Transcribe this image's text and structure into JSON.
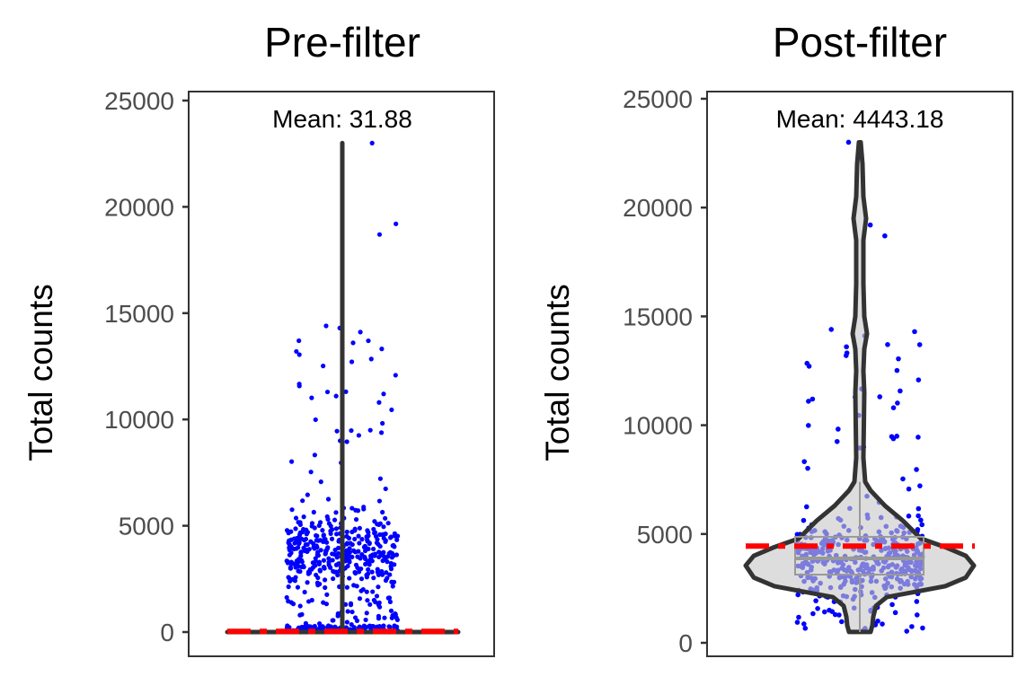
{
  "chart_data": [
    {
      "type": "violin",
      "title": "Pre-filter",
      "ylabel": "Total counts",
      "xlabel": "",
      "ylim": [
        -400,
        26200
      ],
      "yticks": [
        "0",
        "5000",
        "10000",
        "15000",
        "20000",
        "25000"
      ],
      "annotation": "Mean: 31.88",
      "mean": 31.88,
      "max": 23000,
      "mean_line_color": "#ff0000",
      "point_color": "#0000ff",
      "grid": false
    },
    {
      "type": "violin",
      "title": "Post-filter",
      "ylabel": "Total counts",
      "xlabel": "",
      "ylim": [
        -400,
        26200
      ],
      "yticks": [
        "0",
        "5000",
        "10000",
        "15000",
        "20000",
        "25000"
      ],
      "annotation": "Mean: 4443.18",
      "mean": 4443.18,
      "median": 3880,
      "q1": 3135,
      "q3": 4870,
      "whisker_low": 500,
      "whisker_high": 7400,
      "min": 500,
      "max": 23000,
      "violin_fill": "#c8c8c8",
      "mean_line_color": "#ff0000",
      "point_color": "#0000ff",
      "grid": false
    }
  ]
}
